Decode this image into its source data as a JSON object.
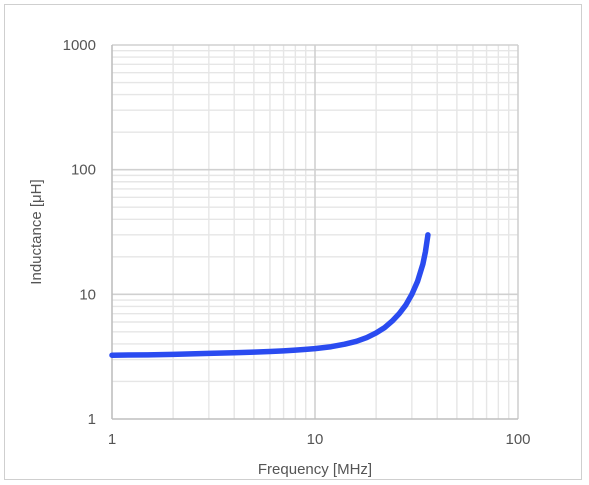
{
  "chart_data": {
    "type": "line",
    "xlabel": "Frequency [MHz]",
    "ylabel": "Inductance  [μH]",
    "x_scale": "log",
    "y_scale": "log",
    "xlim": [
      1,
      100
    ],
    "ylim": [
      1,
      1000
    ],
    "x_ticks": [
      "1",
      "10",
      "100"
    ],
    "y_ticks": [
      "1",
      "10",
      "100",
      "1000"
    ],
    "grid": true,
    "legend": "none",
    "series": [
      {
        "color": "#2a4bf0",
        "x": [
          1,
          1.5,
          2,
          3,
          4,
          5,
          6,
          7,
          8,
          9,
          10,
          12,
          14,
          16,
          18,
          20,
          22,
          24,
          26,
          28,
          30,
          32,
          34,
          35,
          36
        ],
        "y": [
          3.25,
          3.27,
          3.3,
          3.36,
          3.4,
          3.44,
          3.48,
          3.52,
          3.57,
          3.62,
          3.67,
          3.8,
          3.98,
          4.2,
          4.5,
          4.9,
          5.4,
          6.1,
          7.0,
          8.2,
          10.0,
          12.7,
          17.5,
          22.0,
          30.0
        ]
      }
    ]
  }
}
